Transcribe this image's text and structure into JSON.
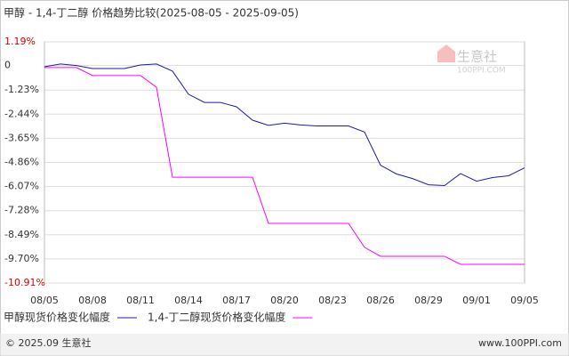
{
  "chart_data": {
    "type": "line",
    "title": "甲醇 - 1,4-丁二醇 价格趋势比较(2025-08-05 - 2025-09-05)",
    "categories": [
      "08/05",
      null,
      null,
      "08/08",
      null,
      null,
      "08/11",
      null,
      null,
      "08/14",
      null,
      null,
      "08/17",
      null,
      null,
      "08/20",
      null,
      null,
      "08/23",
      null,
      null,
      "08/26",
      null,
      null,
      "08/29",
      null,
      null,
      "09/01",
      null,
      null,
      "09/05"
    ],
    "series": [
      {
        "name": "甲醇现货价格变化幅度",
        "color": "#1c1ca8",
        "values": [
          -0.06,
          0.08,
          0,
          -0.15,
          -0.15,
          -0.15,
          0.03,
          0.08,
          -0.28,
          -1.44,
          -1.85,
          -1.85,
          -2.07,
          -2.74,
          -3.0,
          -2.89,
          -2.98,
          -3.03,
          -3.03,
          -3.03,
          -3.34,
          -5.0,
          -5.44,
          -5.67,
          -5.98,
          -6.02,
          -5.42,
          -5.8,
          -5.62,
          -5.53,
          -5.13
        ]
      },
      {
        "name": "1,4-丁二醇现货价格变化幅度",
        "color": "#ff00ff",
        "values": [
          -0.1,
          -0.1,
          -0.1,
          -0.5,
          -0.5,
          -0.5,
          -0.5,
          -1.09,
          -5.6,
          -5.6,
          -5.6,
          -5.6,
          -5.6,
          -5.6,
          -7.92,
          -7.92,
          -7.92,
          -7.92,
          -7.92,
          -7.92,
          -9.12,
          -9.57,
          -9.57,
          -9.57,
          -9.57,
          -9.57,
          -9.97,
          -9.97,
          -9.97,
          -9.97,
          -9.97
        ]
      }
    ],
    "ylim": [
      -10.91,
      1.19
    ],
    "yticks": [
      {
        "value": 1.19,
        "label": "1.19%"
      },
      0,
      {
        "value": -1.23,
        "label": "-1.23%"
      },
      {
        "value": -2.44,
        "label": "-2.44%"
      },
      {
        "value": -3.65,
        "label": "-3.65%"
      },
      {
        "value": -4.86,
        "label": "-4.86%"
      },
      {
        "value": -6.07,
        "label": "-6.07%"
      },
      {
        "value": -7.28,
        "label": "-7.28%"
      },
      {
        "value": -8.49,
        "label": "-8.49%"
      },
      {
        "value": -9.7,
        "label": "-9.70%"
      },
      {
        "value": -10.91,
        "label": "-10.91%"
      }
    ],
    "grid": true
  },
  "watermark": {
    "text": "生意社",
    "subtext": "100PPI.COM"
  },
  "footer": {
    "left": "© 2025.09 生意社",
    "right": "www.100PPI.com"
  }
}
